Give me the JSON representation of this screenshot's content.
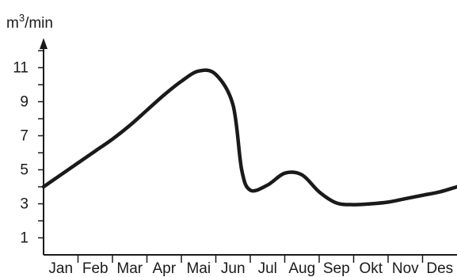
{
  "chart_data": {
    "type": "line",
    "ylabel_base": "m",
    "ylabel_exp": "3",
    "ylabel_rest": "/min",
    "xlabel": "",
    "categories": [
      "Jan",
      "Feb",
      "Mar",
      "Apr",
      "Mai",
      "Jun",
      "Jul",
      "Aug",
      "Sep",
      "Okt",
      "Nov",
      "Des"
    ],
    "yticks": [
      1,
      3,
      5,
      7,
      9,
      11
    ],
    "ylim": [
      0,
      12
    ],
    "grid": false,
    "series": [
      {
        "color": "#1a1a1a",
        "x": [
          0,
          0.5,
          1,
          1.5,
          2,
          2.5,
          3,
          3.5,
          4,
          4.5,
          5,
          5.5,
          5.75,
          6,
          6.5,
          7,
          7.5,
          8,
          8.5,
          9,
          9.5,
          10,
          10.5,
          11,
          11.5,
          12
        ],
        "values": [
          4.0,
          4.7,
          5.4,
          6.1,
          6.8,
          7.6,
          8.5,
          9.4,
          10.2,
          10.8,
          10.6,
          8.8,
          5.0,
          3.8,
          4.1,
          4.8,
          4.7,
          3.7,
          3.05,
          2.95,
          3.0,
          3.1,
          3.3,
          3.5,
          3.7,
          4.0
        ]
      }
    ]
  }
}
